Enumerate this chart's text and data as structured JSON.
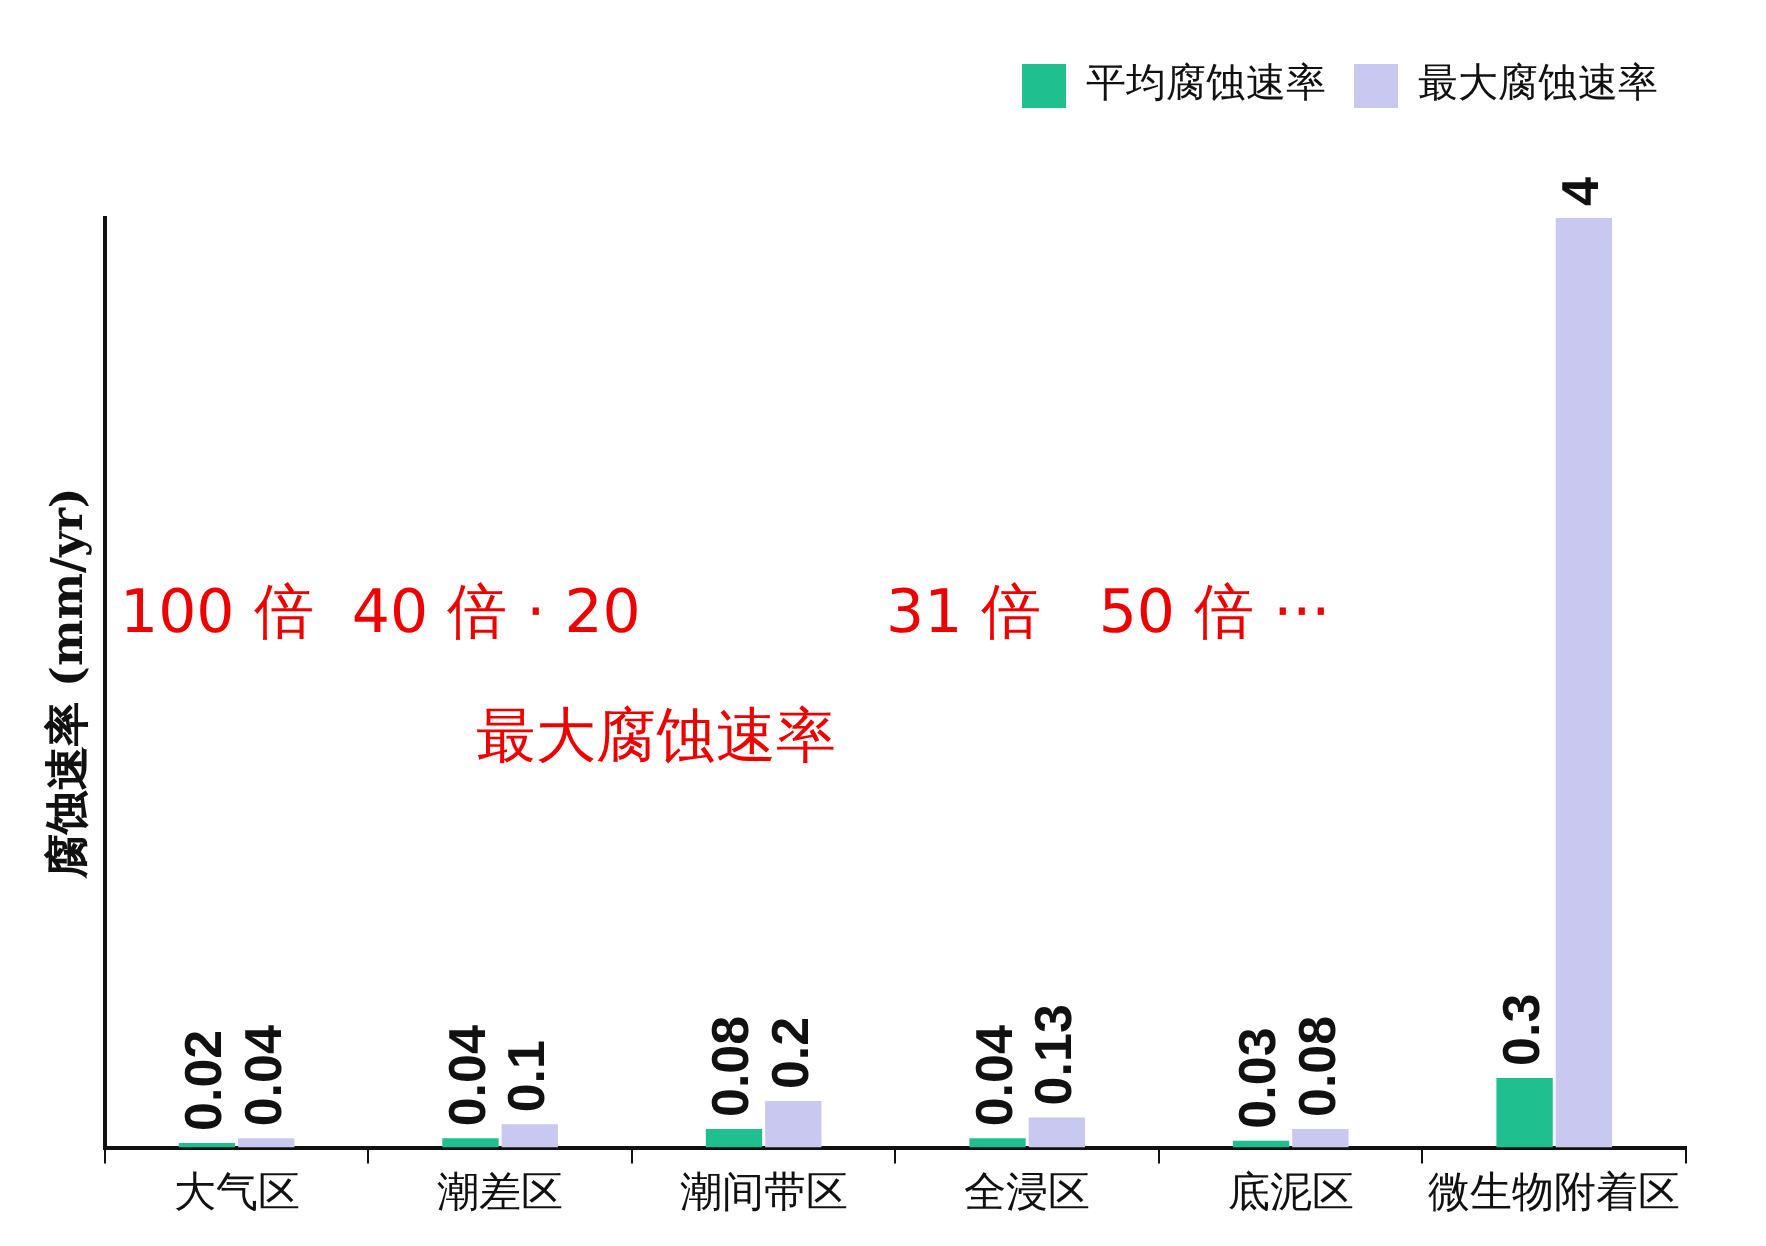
{
  "chart_data": {
    "type": "bar",
    "ylabel": "腐蚀速率 (mm/yr)",
    "categories": [
      "大气区",
      "潮差区",
      "潮间带区",
      "全浸区",
      "底泥区",
      "微生物附着区"
    ],
    "series": [
      {
        "name": "平均腐蚀速率",
        "color": "#1fbf8f",
        "values": [
          0.02,
          0.04,
          0.08,
          0.04,
          0.03,
          0.3
        ]
      },
      {
        "name": "最大腐蚀速率",
        "color": "#c8c8f0",
        "values": [
          0.04,
          0.1,
          0.2,
          0.13,
          0.08,
          4
        ]
      }
    ],
    "ylim": [
      0,
      4
    ],
    "tick_labels": "x",
    "grid": false,
    "legend": "top right",
    "data_labels": true,
    "annotations": [
      "100 倍  40 倍 · 20",
      "31 倍   50 倍 ···",
      "最大腐蚀速率"
    ]
  }
}
